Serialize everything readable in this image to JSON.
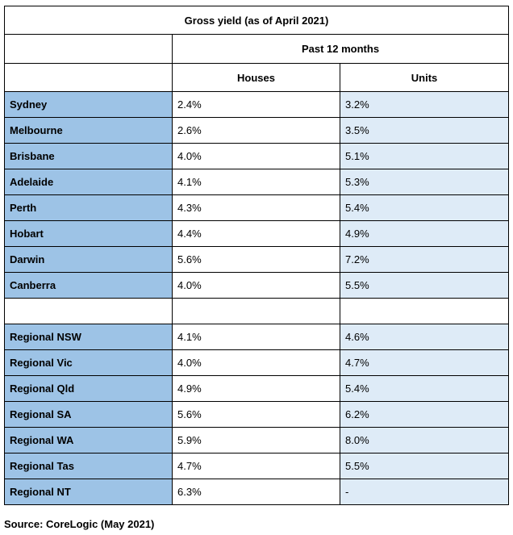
{
  "table": {
    "title": "Gross yield (as of April 2021)",
    "period_header": "Past 12 months",
    "columns": [
      "Houses",
      "Units"
    ],
    "capital_rows": [
      {
        "region": "Sydney",
        "houses": "2.4%",
        "units": "3.2%"
      },
      {
        "region": "Melbourne",
        "houses": "2.6%",
        "units": "3.5%"
      },
      {
        "region": "Brisbane",
        "houses": "4.0%",
        "units": "5.1%"
      },
      {
        "region": "Adelaide",
        "houses": "4.1%",
        "units": "5.3%"
      },
      {
        "region": "Perth",
        "houses": "4.3%",
        "units": "5.4%"
      },
      {
        "region": "Hobart",
        "houses": "4.4%",
        "units": "4.9%"
      },
      {
        "region": "Darwin",
        "houses": "5.6%",
        "units": "7.2%"
      },
      {
        "region": "Canberra",
        "houses": "4.0%",
        "units": "5.5%"
      }
    ],
    "regional_rows": [
      {
        "region": "Regional NSW",
        "houses": "4.1%",
        "units": "4.6%"
      },
      {
        "region": "Regional Vic",
        "houses": "4.0%",
        "units": "4.7%"
      },
      {
        "region": "Regional Qld",
        "houses": "4.9%",
        "units": "5.4%"
      },
      {
        "region": "Regional SA",
        "houses": "5.6%",
        "units": "6.2%"
      },
      {
        "region": "Regional WA",
        "houses": "5.9%",
        "units": "8.0%"
      },
      {
        "region": "Regional Tas",
        "houses": "4.7%",
        "units": "5.5%"
      },
      {
        "region": "Regional NT",
        "houses": "6.3%",
        "units": "-"
      }
    ]
  },
  "source": "Source: CoreLogic (May 2021)",
  "colors": {
    "region_fill": "#9dc3e6",
    "units_fill": "#deebf7",
    "border": "#000000"
  }
}
